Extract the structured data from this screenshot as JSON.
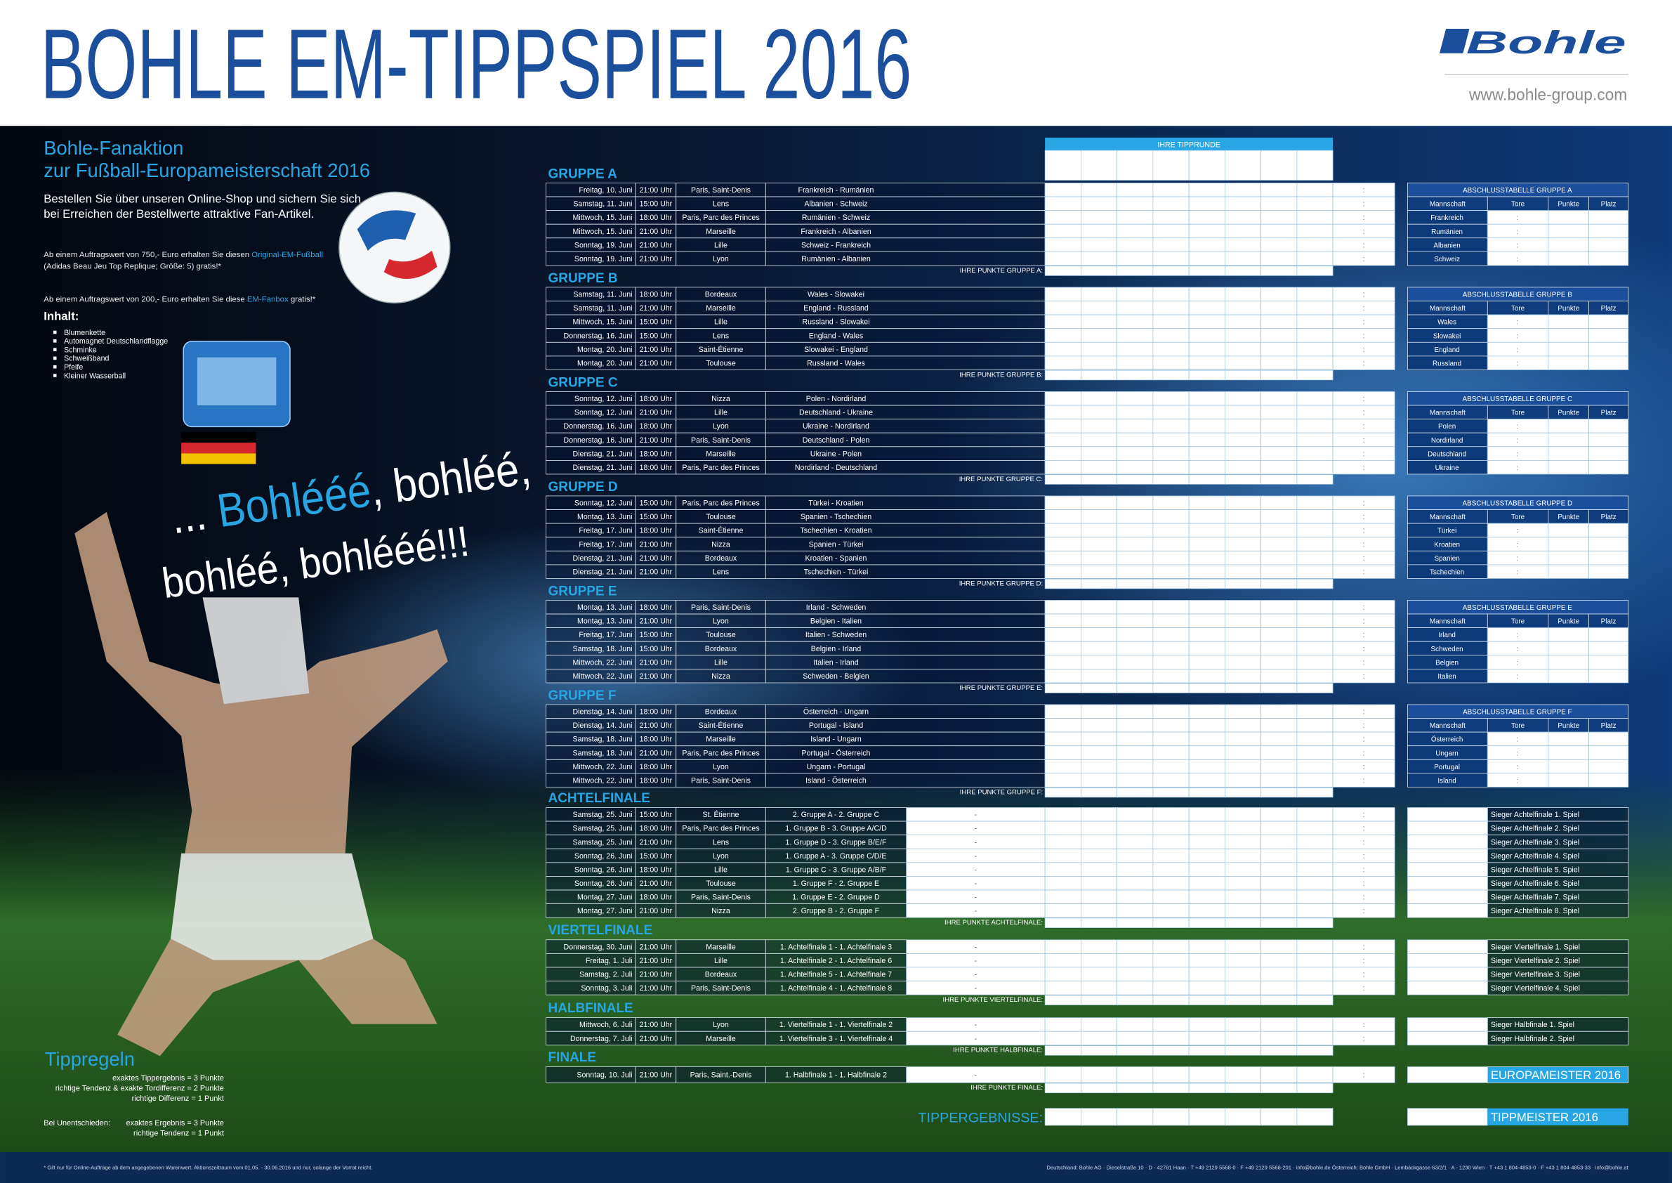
{
  "header": {
    "title": "BOHLE EM-TIPPSPIEL 2016",
    "logo": "Bohle",
    "url": "www.bohle-group.com"
  },
  "promo": {
    "heading": [
      "Bohle-Fanaktion",
      "zur Fußball-Europameisterschaft 2016"
    ],
    "intro": [
      "Bestellen Sie über unseren Online-Shop und sichern Sie sich",
      "bei Erreichen der Bestellwerte attraktive Fan-Artikel."
    ],
    "offer_ball": [
      "Ab einem Auftragswert von 750,- Euro erhalten Sie diesen ",
      "Original-EM-Fußball"
    ],
    "offer_ball_note": "(Adidas Beau Jeu Top Replique; Größe: 5) gratis!*",
    "offer_box": [
      "Ab einem Auftragswert von 200,- Euro  erhalten Sie diese ",
      "EM-Fanbox",
      " gratis!*"
    ],
    "contents_title": "Inhalt:",
    "contents": [
      "Blumenkette",
      "Automagnet Deutschlandflagge",
      "Schminke",
      "Schweißband",
      "Pfeife",
      "Kleiner Wasserball"
    ],
    "slogan_1": [
      "... ",
      "Bohlééé",
      ", bohléé,"
    ],
    "slogan_2": "bohléé, bohlééé!!!"
  },
  "rules": {
    "title": "Tippregeln",
    "lines": [
      "exaktes Tippergebnis = 3 Punkte",
      "richtige Tendenz & exakte Tordifferenz = 2 Punkte",
      "richtige Differenz = 1 Punkt"
    ],
    "draw_title": "Bei Unentschieden:",
    "draw_lines": [
      "exaktes Ergebnis = 3 Punkte",
      "richtige Tendenz = 1 Punkt"
    ]
  },
  "tipp_header": "IHRE TIPPRUNDE",
  "separators": {
    "score": ":",
    "teams": "-"
  },
  "table_headers": [
    "Mannschaft",
    "Tore",
    "Punkte",
    "Platz"
  ],
  "groups": [
    {
      "name": "GRUPPE A",
      "points": "IHRE PUNKTE GRUPPE A:",
      "table_title": "ABSCHLUSSTABELLE GRUPPE A",
      "teams": [
        "Frankreich",
        "Rumänien",
        "Albanien",
        "Schweiz"
      ],
      "matches": [
        [
          "Freitag, 10. Juni",
          "21:00 Uhr",
          "Paris, Saint-Denis",
          "Frankreich - Rumänien"
        ],
        [
          "Samstag, 11. Juni",
          "15:00 Uhr",
          "Lens",
          "Albanien - Schweiz"
        ],
        [
          "Mittwoch, 15. Juni",
          "18:00 Uhr",
          "Paris, Parc des Princes",
          "Rumänien - Schweiz"
        ],
        [
          "Mittwoch, 15. Juni",
          "21:00 Uhr",
          "Marseille",
          "Frankreich - Albanien"
        ],
        [
          "Sonntag, 19. Juni",
          "21:00 Uhr",
          "Lille",
          "Schweiz - Frankreich"
        ],
        [
          "Sonntag, 19. Juni",
          "21:00 Uhr",
          "Lyon",
          "Rumänien - Albanien"
        ]
      ]
    },
    {
      "name": "GRUPPE B",
      "points": "IHRE PUNKTE GRUPPE B:",
      "table_title": "ABSCHLUSSTABELLE GRUPPE B",
      "teams": [
        "Wales",
        "Slowakei",
        "England",
        "Russland"
      ],
      "matches": [
        [
          "Samstag, 11. Juni",
          "18:00 Uhr",
          "Bordeaux",
          "Wales - Slowakei"
        ],
        [
          "Samstag, 11. Juni",
          "21:00 Uhr",
          "Marseille",
          "England - Russland"
        ],
        [
          "Mittwoch, 15. Juni",
          "15:00 Uhr",
          "Lille",
          "Russland - Slowakei"
        ],
        [
          "Donnerstag, 16. Juni",
          "15:00 Uhr",
          "Lens",
          "England - Wales"
        ],
        [
          "Montag, 20. Juni",
          "21:00 Uhr",
          "Saint-Étienne",
          "Slowakei - England"
        ],
        [
          "Montag, 20. Juni",
          "21:00 Uhr",
          "Toulouse",
          "Russland - Wales"
        ]
      ]
    },
    {
      "name": "GRUPPE C",
      "points": "IHRE PUNKTE GRUPPE C:",
      "table_title": "ABSCHLUSSTABELLE GRUPPE C",
      "teams": [
        "Polen",
        "Nordirland",
        "Deutschland",
        "Ukraine"
      ],
      "matches": [
        [
          "Sonntag, 12. Juni",
          "18:00 Uhr",
          "Nizza",
          "Polen - Nordirland"
        ],
        [
          "Sonntag, 12. Juni",
          "21:00 Uhr",
          "Lille",
          "Deutschland - Ukraine"
        ],
        [
          "Donnerstag, 16. Juni",
          "18:00 Uhr",
          "Lyon",
          "Ukraine - Nordirland"
        ],
        [
          "Donnerstag, 16. Juni",
          "21:00 Uhr",
          "Paris, Saint-Denis",
          "Deutschland - Polen"
        ],
        [
          "Dienstag, 21. Juni",
          "18:00 Uhr",
          "Marseille",
          "Ukraine - Polen"
        ],
        [
          "Dienstag, 21. Juni",
          "18:00 Uhr",
          "Paris, Parc des Princes",
          "Nordirland - Deutschland"
        ]
      ]
    },
    {
      "name": "GRUPPE D",
      "points": "IHRE PUNKTE GRUPPE D:",
      "table_title": "ABSCHLUSSTABELLE GRUPPE D",
      "teams": [
        "Türkei",
        "Kroatien",
        "Spanien",
        "Tschechien"
      ],
      "matches": [
        [
          "Sonntag, 12. Juni",
          "15:00 Uhr",
          "Paris, Parc des Princes",
          "Türkei - Kroatien"
        ],
        [
          "Montag, 13. Juni",
          "15:00 Uhr",
          "Toulouse",
          "Spanien - Tschechien"
        ],
        [
          "Freitag, 17. Juni",
          "18:00 Uhr",
          "Saint-Étienne",
          "Tschechien - Kroatien"
        ],
        [
          "Freitag, 17. Juni",
          "21:00 Uhr",
          "Nizza",
          "Spanien - Türkei"
        ],
        [
          "Dienstag, 21. Juni",
          "21:00 Uhr",
          "Bordeaux",
          "Kroatien - Spanien"
        ],
        [
          "Dienstag, 21. Juni",
          "21:00 Uhr",
          "Lens",
          "Tschechien - Türkei"
        ]
      ]
    },
    {
      "name": "GRUPPE E",
      "points": "IHRE PUNKTE GRUPPE E:",
      "table_title": "ABSCHLUSSTABELLE GRUPPE E",
      "teams": [
        "Irland",
        "Schweden",
        "Belgien",
        "Italien"
      ],
      "matches": [
        [
          "Montag, 13. Juni",
          "18:00 Uhr",
          "Paris, Saint-Denis",
          "Irland - Schweden"
        ],
        [
          "Montag, 13. Juni",
          "21:00 Uhr",
          "Lyon",
          "Belgien - Italien"
        ],
        [
          "Freitag, 17. Juni",
          "15:00 Uhr",
          "Toulouse",
          "Italien - Schweden"
        ],
        [
          "Samstag, 18. Juni",
          "15:00 Uhr",
          "Bordeaux",
          "Belgien - Irland"
        ],
        [
          "Mittwoch, 22. Juni",
          "21:00 Uhr",
          "Lille",
          "Italien - Irland"
        ],
        [
          "Mittwoch, 22. Juni",
          "21:00 Uhr",
          "Nizza",
          "Schweden - Belgien"
        ]
      ]
    },
    {
      "name": "GRUPPE F",
      "points": "IHRE PUNKTE GRUPPE F:",
      "table_title": "ABSCHLUSSTABELLE GRUPPE F",
      "teams": [
        "Österreich",
        "Ungarn",
        "Portugal",
        "Island"
      ],
      "matches": [
        [
          "Dienstag, 14. Juni",
          "18:00 Uhr",
          "Bordeaux",
          "Österreich - Ungarn"
        ],
        [
          "Dienstag, 14. Juni",
          "21:00 Uhr",
          "Saint-Étienne",
          "Portugal - Island"
        ],
        [
          "Samstag, 18. Juni",
          "18:00 Uhr",
          "Marseille",
          "Island - Ungarn"
        ],
        [
          "Samstag, 18. Juni",
          "21:00 Uhr",
          "Paris, Parc des Princes",
          "Portugal - Österreich"
        ],
        [
          "Mittwoch, 22. Juni",
          "18:00 Uhr",
          "Lyon",
          "Ungarn - Portugal"
        ],
        [
          "Mittwoch, 22. Juni",
          "18:00 Uhr",
          "Paris, Saint-Denis",
          "Island - Österreich"
        ]
      ]
    }
  ],
  "knockout": [
    {
      "name": "ACHTELFINALE",
      "points": "IHRE PUNKTE ACHTELFINALE:",
      "matches": [
        [
          "Samstag, 25. Juni",
          "15:00 Uhr",
          "St. Étienne",
          "2. Gruppe A - 2. Gruppe C"
        ],
        [
          "Samstag, 25. Juni",
          "18:00 Uhr",
          "Paris, Parc des Princes",
          "1. Gruppe B - 3. Gruppe A/C/D"
        ],
        [
          "Samstag, 25. Juni",
          "21:00 Uhr",
          "Lens",
          "1. Gruppe D - 3. Gruppe B/E/F"
        ],
        [
          "Sonntag, 26. Juni",
          "15:00 Uhr",
          "Lyon",
          "1. Gruppe A - 3. Gruppe C/D/E"
        ],
        [
          "Sonntag, 26. Juni",
          "18:00 Uhr",
          "Lille",
          "1. Gruppe C - 3. Gruppe A/B/F"
        ],
        [
          "Sonntag, 26. Juni",
          "21:00 Uhr",
          "Toulouse",
          "1. Gruppe F - 2. Gruppe E"
        ],
        [
          "Montag, 27. Juni",
          "18:00 Uhr",
          "Paris, Saint-Denis",
          "1. Gruppe E - 2. Gruppe D"
        ],
        [
          "Montag, 27. Juni",
          "21:00 Uhr",
          "Nizza",
          "2. Gruppe B - 2. Gruppe F"
        ]
      ],
      "winners": [
        "Sieger Achtelfinale 1. Spiel",
        "Sieger Achtelfinale 2. Spiel",
        "Sieger Achtelfinale 3. Spiel",
        "Sieger Achtelfinale 4. Spiel",
        "Sieger Achtelfinale 5. Spiel",
        "Sieger Achtelfinale 6. Spiel",
        "Sieger Achtelfinale 7. Spiel",
        "Sieger Achtelfinale 8. Spiel"
      ]
    },
    {
      "name": "VIERTELFINALE",
      "points": "IHRE PUNKTE VIERTELFINALE:",
      "matches": [
        [
          "Donnerstag, 30. Juni",
          "21:00 Uhr",
          "Marseille",
          "1. Achtelfinale 1 - 1. Achtelfinale 3"
        ],
        [
          "Freitag, 1. Juli",
          "21:00 Uhr",
          "Lille",
          "1. Achtelfinale 2 - 1. Achtelfinale 6"
        ],
        [
          "Samstag, 2. Juli",
          "21:00 Uhr",
          "Bordeaux",
          "1. Achtelfinale 5 - 1. Achtelfinale 7"
        ],
        [
          "Sonntag, 3. Juli",
          "21:00 Uhr",
          "Paris, Saint-Denis",
          "1. Achtelfinale 4 - 1. Achtelfinale 8"
        ]
      ],
      "winners": [
        "Sieger Viertelfinale 1. Spiel",
        "Sieger Viertelfinale 2. Spiel",
        "Sieger Viertelfinale 3. Spiel",
        "Sieger Viertelfinale 4. Spiel"
      ]
    },
    {
      "name": "HALBFINALE",
      "points": "IHRE PUNKTE HALBFINALE:",
      "matches": [
        [
          "Mittwoch, 6. Juli",
          "21:00 Uhr",
          "Lyon",
          "1. Viertelfinale 1 - 1. Viertelfinale 2"
        ],
        [
          "Donnerstag, 7. Juli",
          "21:00 Uhr",
          "Marseille",
          "1. Viertelfinale 3 - 1. Viertelfinale 4"
        ]
      ],
      "winners": [
        "Sieger Halbfinale 1. Spiel",
        "Sieger Halbfinale 2. Spiel"
      ]
    },
    {
      "name": "FINALE",
      "points": "IHRE PUNKTE FINALE:",
      "matches": [
        [
          "Sonntag, 10. Juli",
          "21:00 Uhr",
          "Paris, Saint.-Denis",
          "1. Halbfinale 1 - 1. Halbfinale 2"
        ]
      ],
      "winners": [
        "EUROPAMEISTER 2016"
      ]
    }
  ],
  "totals": {
    "label": "TIPPERGEBNISSE:",
    "winner": "TIPPMEISTER 2016"
  },
  "footer": {
    "note": "*  Gilt nur für Online-Aufträge ab dem angegebenen Warenwert. Aktionszeitraum vom 01.05. - 30.06.2016 und nur, solange der Vorrat reicht.",
    "contact": "Deutschland:  Bohle AG  ·  Dieselstraße 10  ·  D - 42781 Haan  ·  T +49 2129 5568-0  ·  F +49 2129 5568-201  ·  info@bohle.de    Österreich:  Bohle GmbH  ·  Lembäckgasse 63/2/1  ·  A - 1230 Wien  ·  T +43 1 804-4853-0  ·  F +43 1 804-4853-33  ·  info@bohle.at"
  }
}
